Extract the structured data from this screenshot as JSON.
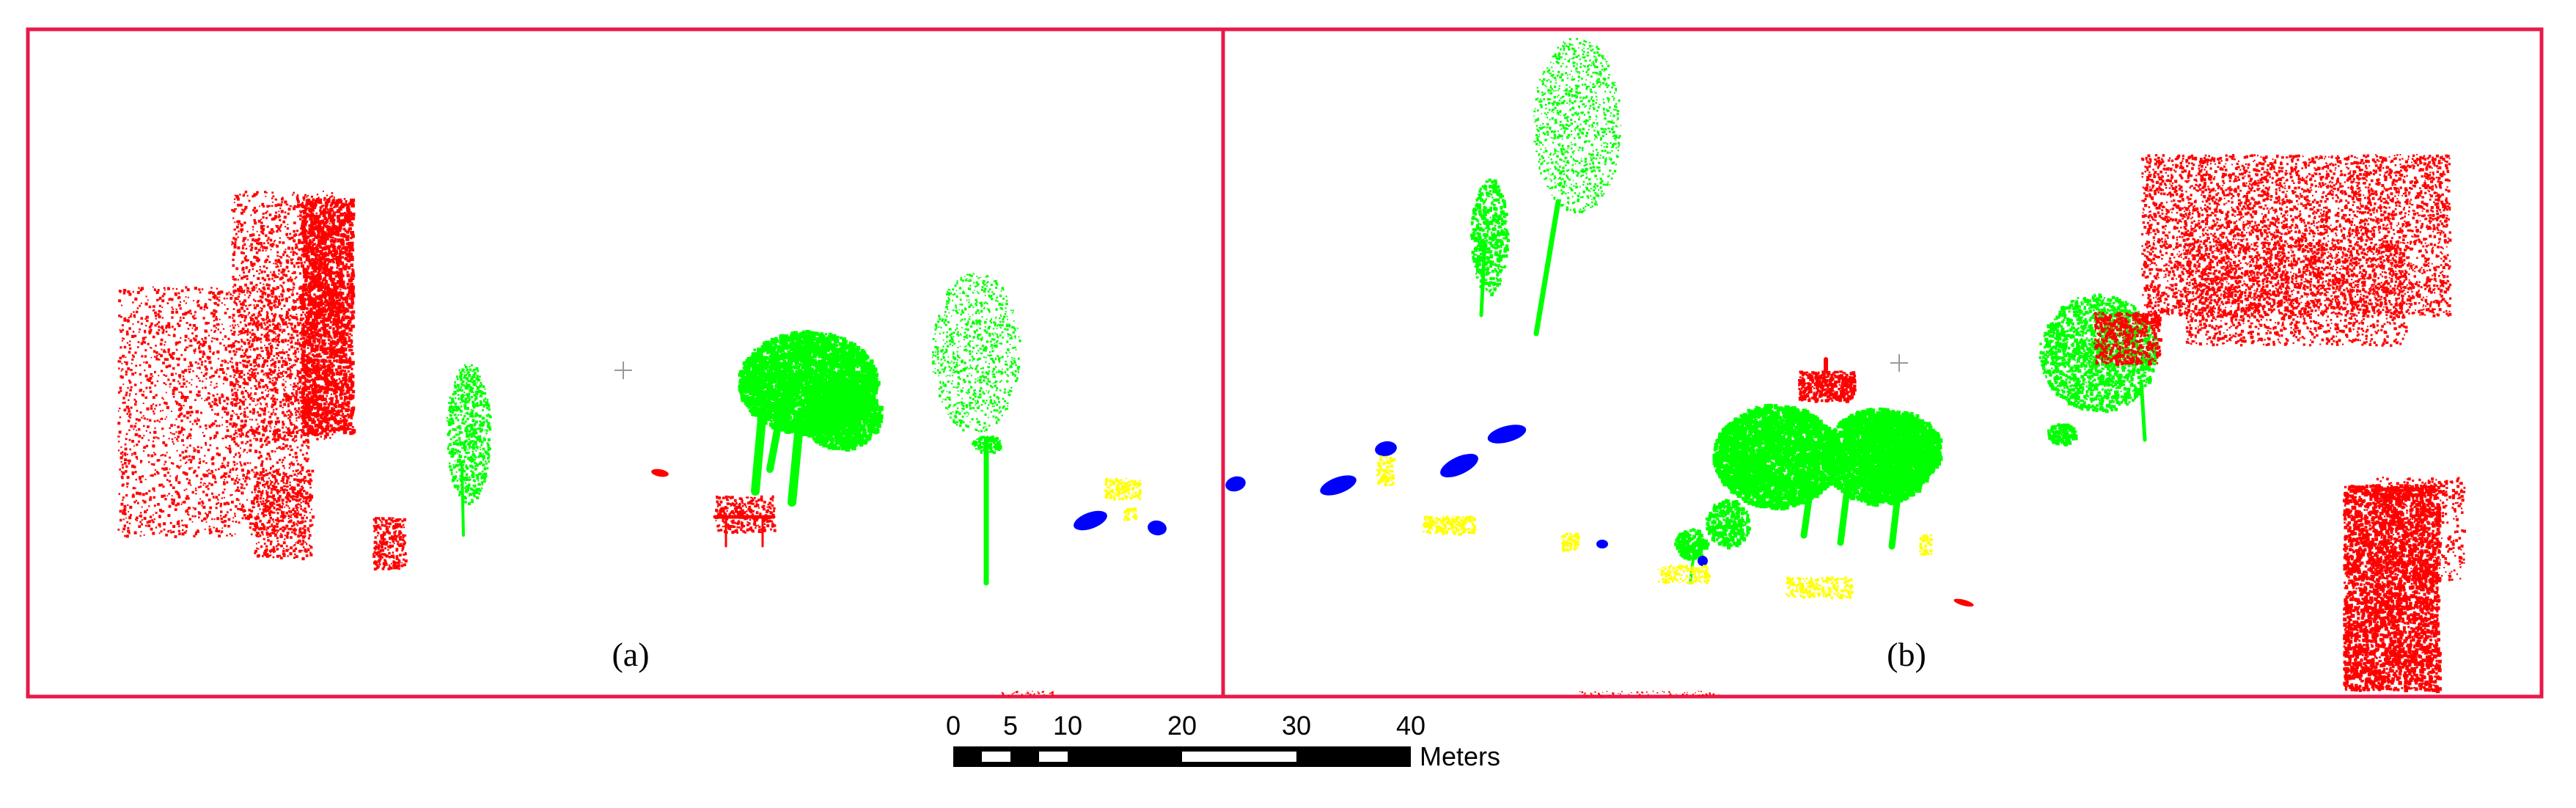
{
  "figure": {
    "panels": [
      {
        "label": "(a)"
      },
      {
        "label": "(b)"
      }
    ],
    "legend_colors": {
      "building": "#ff0000",
      "tree": "#00ff00",
      "car": "#0000ff",
      "pedestrian": "#ffff00",
      "frame": "#e8194a"
    },
    "scale_bar": {
      "ticks": [
        "0",
        "5",
        "10",
        "20",
        "30",
        "40"
      ],
      "unit": "Meters"
    }
  }
}
